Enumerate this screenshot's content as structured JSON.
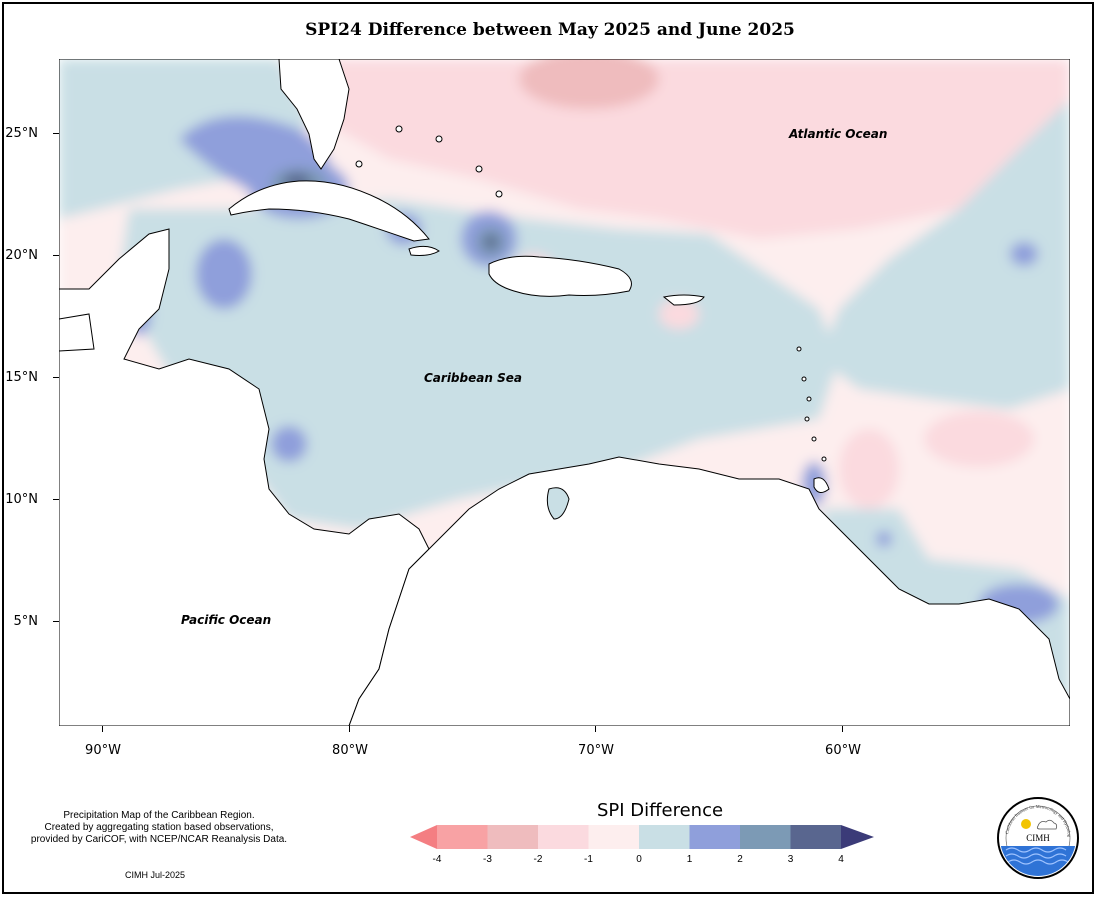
{
  "title": "SPI24 Difference between May 2025 and June 2025",
  "axes": {
    "y_labels": [
      "25°N",
      "20°N",
      "15°N",
      "10°N",
      "5°N"
    ],
    "x_labels": [
      "90°W",
      "80°W",
      "70°W",
      "60°W"
    ]
  },
  "map_labels": {
    "atlantic": "Atlantic Ocean",
    "caribbean": "Caribbean Sea",
    "pacific": "Pacific Ocean"
  },
  "credits": {
    "line1": "Precipitation Map of the Caribbean Region.",
    "line2": "Created by aggregating station based observations,",
    "line3": "provided by CariCOF, with NCEP/NCAR Reanalysis Data.",
    "date": "CIMH Jul-2025"
  },
  "legend": {
    "title": "SPI Difference",
    "labels": [
      "-4",
      "-3",
      "-2",
      "-1",
      "0",
      "1",
      "2",
      "3",
      "4"
    ],
    "colors": [
      "#f47e82",
      "#f8a2a4",
      "#efbcbe",
      "#fbdadf",
      "#fdeeee",
      "#c9dfe5",
      "#8f9fdb",
      "#7c9ab5",
      "#59668f",
      "#3b3b78"
    ]
  },
  "logo": {
    "name": "CIMH",
    "ring_text": "Caribbean Institute for Meteorology and Hydrology"
  }
}
